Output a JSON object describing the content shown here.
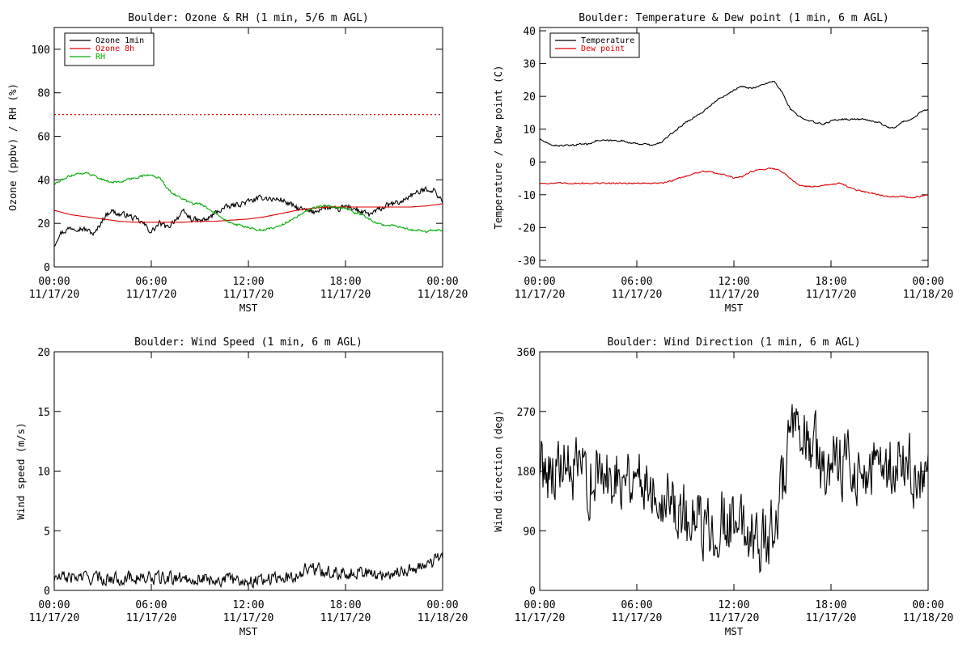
{
  "chart_data": [
    {
      "type": "line",
      "title": "Boulder: Ozone & RH (1 min, 5/6 m AGL)",
      "xlabel": "MST",
      "ylabel": "Ozone (ppbv) / RH (%)",
      "xlim": [
        0,
        24
      ],
      "ylim": [
        0,
        110
      ],
      "yticks": [
        0,
        20,
        40,
        60,
        80,
        100
      ],
      "xticks": [
        0,
        6,
        12,
        18,
        24
      ],
      "xtick_labels": [
        [
          "00:00",
          "11/17/20"
        ],
        [
          "06:00",
          "11/17/20"
        ],
        [
          "12:00",
          "11/17/20"
        ],
        [
          "18:00",
          "11/17/20"
        ],
        [
          "00:00",
          "11/18/20"
        ]
      ],
      "legend": "top-left",
      "reference_line": {
        "y": 70,
        "color": "#dd0000",
        "style": "dotted"
      },
      "series": [
        {
          "name": "Ozone 1min",
          "color": "#000000",
          "noise": 1.8,
          "x": [
            0,
            0.3,
            1,
            1.5,
            2,
            2.5,
            3,
            3.5,
            4,
            4.5,
            5,
            5.5,
            6,
            6.5,
            7,
            7.5,
            8,
            8.5,
            9,
            9.5,
            10,
            10.5,
            11,
            11.5,
            12,
            12.5,
            13,
            13.5,
            14,
            14.5,
            15,
            15.5,
            16,
            16.5,
            17,
            17.5,
            18,
            18.5,
            19,
            19.5,
            20,
            20.5,
            21,
            21.5,
            22,
            22.5,
            23,
            23.5,
            24
          ],
          "values": [
            10,
            15,
            18,
            18,
            17,
            15,
            22,
            26,
            24,
            24,
            22,
            20,
            16,
            20,
            18,
            22,
            25,
            22,
            21,
            22,
            25,
            27,
            28,
            29,
            30,
            31,
            32,
            31,
            31,
            29,
            27,
            26,
            25,
            27,
            27,
            26,
            28,
            27,
            25,
            24,
            26,
            28,
            29,
            30,
            33,
            34,
            36,
            35,
            30
          ]
        },
        {
          "name": "Ozone 8h",
          "color": "#dd0000",
          "noise": 0,
          "x": [
            0,
            1,
            2,
            3,
            4,
            5,
            6,
            7,
            8,
            9,
            10,
            11,
            12,
            13,
            14,
            15,
            16,
            17,
            18,
            19,
            20,
            21,
            22,
            23,
            24
          ],
          "values": [
            26,
            24,
            23,
            22,
            21,
            20.5,
            20.5,
            20.5,
            20.5,
            21,
            21,
            21.5,
            22,
            23,
            24.5,
            26,
            27,
            27.5,
            27.5,
            27.5,
            27.5,
            27.5,
            27.5,
            28,
            29
          ]
        },
        {
          "name": "RH",
          "color": "#00aa00",
          "noise": 0.7,
          "x": [
            0,
            0.5,
            1,
            1.5,
            2,
            2.5,
            3,
            3.5,
            4,
            4.5,
            5,
            5.5,
            6,
            6.5,
            7,
            7.5,
            8,
            8.5,
            9,
            9.5,
            10,
            10.5,
            11,
            11.5,
            12,
            12.5,
            13,
            13.5,
            14,
            14.5,
            15,
            15.5,
            16,
            16.5,
            17,
            17.5,
            18,
            18.5,
            19,
            19.5,
            20,
            20.5,
            21,
            21.5,
            22,
            22.5,
            23,
            23.5,
            24
          ],
          "values": [
            38,
            40,
            42,
            43,
            43,
            42,
            40,
            39,
            39,
            40,
            41,
            42,
            42,
            41,
            36,
            33,
            31,
            29,
            29,
            27,
            25,
            22,
            20,
            19,
            18,
            17,
            17,
            18,
            19,
            21,
            23,
            25,
            27,
            28,
            28,
            27,
            27,
            25,
            24,
            22,
            20,
            19,
            19,
            18,
            17,
            17,
            16,
            17,
            17
          ]
        }
      ]
    },
    {
      "type": "line",
      "title": "Boulder: Temperature & Dew point (1 min, 6 m AGL)",
      "xlabel": "MST",
      "ylabel": "Temperature / Dew point (C)",
      "xlim": [
        0,
        24
      ],
      "ylim": [
        -32,
        41
      ],
      "yticks": [
        -30,
        -20,
        -10,
        0,
        10,
        20,
        30,
        40
      ],
      "xticks": [
        0,
        6,
        12,
        18,
        24
      ],
      "xtick_labels": [
        [
          "00:00",
          "11/17/20"
        ],
        [
          "06:00",
          "11/17/20"
        ],
        [
          "12:00",
          "11/17/20"
        ],
        [
          "18:00",
          "11/17/20"
        ],
        [
          "00:00",
          "11/18/20"
        ]
      ],
      "legend": "top-left",
      "series": [
        {
          "name": "Temperature",
          "color": "#000000",
          "noise": 0.35,
          "x": [
            0,
            0.5,
            1,
            1.5,
            2,
            2.5,
            3,
            3.5,
            4,
            4.5,
            5,
            5.5,
            6,
            6.5,
            7,
            7.5,
            8,
            8.5,
            9,
            9.5,
            10,
            10.5,
            11,
            11.5,
            12,
            12.5,
            13,
            13.5,
            14,
            14.5,
            15,
            15.5,
            16,
            16.5,
            17,
            17.5,
            18,
            18.5,
            19,
            19.5,
            20,
            20.5,
            21,
            21.5,
            22,
            22.5,
            23,
            23.5,
            24
          ],
          "values": [
            7,
            5.5,
            5,
            5,
            5,
            5.5,
            5.5,
            6.5,
            6.5,
            6.5,
            6.5,
            6,
            5.5,
            5.5,
            5,
            6,
            8,
            10,
            12,
            13.5,
            15,
            17,
            19,
            20.5,
            22,
            23,
            22.5,
            23,
            24,
            24.5,
            21,
            16,
            14,
            13,
            12,
            11.5,
            12.5,
            13,
            13,
            13,
            13,
            12.5,
            12,
            10.5,
            10.5,
            12.5,
            13,
            15,
            16
          ]
        },
        {
          "name": "Dew point",
          "color": "#dd0000",
          "noise": 0.3,
          "x": [
            0,
            1,
            2,
            3,
            4,
            5,
            6,
            7,
            7.5,
            8,
            8.5,
            9,
            9.5,
            10,
            10.5,
            11,
            11.5,
            12,
            12.5,
            13,
            13.5,
            14,
            14.5,
            15,
            15.5,
            16,
            16.5,
            17,
            17.5,
            18,
            18.5,
            19,
            19.5,
            20,
            20.5,
            21,
            21.5,
            22,
            22.5,
            23,
            23.5,
            24
          ],
          "values": [
            -6.5,
            -6.5,
            -6.5,
            -6.5,
            -6.5,
            -6.5,
            -6.5,
            -6.5,
            -6.5,
            -6,
            -5,
            -4.5,
            -3.5,
            -3,
            -3,
            -3.5,
            -4,
            -5,
            -4.5,
            -3,
            -2.5,
            -2,
            -2,
            -3,
            -5,
            -7,
            -7.5,
            -7.5,
            -7,
            -7,
            -6.5,
            -7.5,
            -8.5,
            -9,
            -9.5,
            -10,
            -10.5,
            -10.5,
            -10.5,
            -11,
            -10.5,
            -10
          ]
        }
      ]
    },
    {
      "type": "line",
      "title": "Boulder: Wind Speed (1 min, 6 m AGL)",
      "xlabel": "MST",
      "ylabel": "Wind speed (m/s)",
      "xlim": [
        0,
        24
      ],
      "ylim": [
        0,
        20
      ],
      "yticks": [
        0,
        5,
        10,
        15,
        20
      ],
      "xticks": [
        0,
        6,
        12,
        18,
        24
      ],
      "xtick_labels": [
        [
          "00:00",
          "11/17/20"
        ],
        [
          "06:00",
          "11/17/20"
        ],
        [
          "12:00",
          "11/17/20"
        ],
        [
          "18:00",
          "11/17/20"
        ],
        [
          "00:00",
          "11/18/20"
        ]
      ],
      "series": [
        {
          "name": "",
          "color": "#000000",
          "noise": 0.75,
          "floor": 0,
          "x": [
            0,
            1,
            2,
            3,
            4,
            5,
            6,
            7,
            8,
            9,
            10,
            11,
            12,
            13,
            14,
            15,
            15.5,
            16,
            17,
            18,
            19,
            20,
            21,
            22,
            23,
            23.5,
            24
          ],
          "values": [
            1,
            1.1,
            1.1,
            1,
            1,
            1.1,
            1,
            1,
            1,
            1,
            0.9,
            0.9,
            0.8,
            1,
            1,
            1.2,
            1.9,
            1.8,
            1.5,
            1.5,
            1.6,
            1.2,
            1.5,
            1.8,
            2,
            2.5,
            3
          ]
        }
      ]
    },
    {
      "type": "line",
      "title": "Boulder: Wind Direction (1 min, 6 m AGL)",
      "xlabel": "MST",
      "ylabel": "Wind direction (deg)",
      "xlim": [
        0,
        24
      ],
      "ylim": [
        0,
        360
      ],
      "yticks": [
        0,
        90,
        180,
        270,
        360
      ],
      "xticks": [
        0,
        6,
        12,
        18,
        24
      ],
      "xtick_labels": [
        [
          "00:00",
          "11/17/20"
        ],
        [
          "06:00",
          "11/17/20"
        ],
        [
          "12:00",
          "11/17/20"
        ],
        [
          "18:00",
          "11/17/20"
        ],
        [
          "00:00",
          "11/18/20"
        ]
      ],
      "series": [
        {
          "name": "",
          "color": "#000000",
          "noise": 70,
          "floor": 0,
          "ceil": 360,
          "x": [
            0,
            1,
            2,
            3,
            4,
            5,
            6,
            7,
            8,
            9,
            10,
            11,
            12,
            13,
            14,
            14.7,
            15.5,
            16,
            17,
            17.5,
            18,
            19,
            20,
            21,
            22,
            23,
            24
          ],
          "values": [
            190,
            185,
            175,
            170,
            170,
            180,
            175,
            160,
            140,
            110,
            90,
            110,
            100,
            90,
            70,
            120,
            230,
            225,
            220,
            160,
            200,
            190,
            180,
            180,
            190,
            185,
            150
          ]
        }
      ]
    }
  ]
}
